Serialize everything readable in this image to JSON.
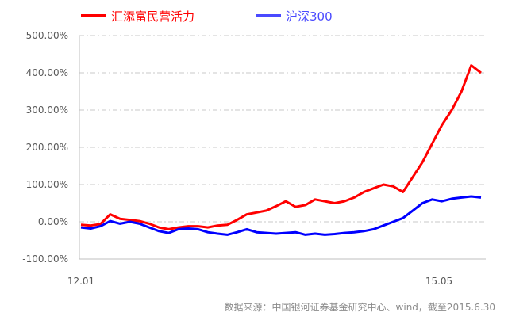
{
  "chart_data": {
    "type": "line",
    "ylim": [
      -100,
      500
    ],
    "y_ticks": [
      "500.00%",
      "400.00%",
      "300.00%",
      "200.00%",
      "100.00%",
      "0.00%",
      "-100.00%"
    ],
    "y_tick_values": [
      500,
      400,
      300,
      200,
      100,
      0,
      -100
    ],
    "x_ticks": [
      "12.01",
      "15.05"
    ],
    "grid": "horizontal dashed",
    "legend": "top-left",
    "series": [
      {
        "name": "汇添富民营活力",
        "color": "#ff0000",
        "x": [
          "2012-01",
          "2012-02",
          "2012-03",
          "2012-04",
          "2012-05",
          "2012-06",
          "2012-07",
          "2012-08",
          "2012-09",
          "2012-10",
          "2012-11",
          "2012-12",
          "2013-01",
          "2013-02",
          "2013-03",
          "2013-04",
          "2013-05",
          "2013-06",
          "2013-07",
          "2013-08",
          "2013-09",
          "2013-10",
          "2013-11",
          "2013-12",
          "2014-01",
          "2014-02",
          "2014-03",
          "2014-04",
          "2014-05",
          "2014-06",
          "2014-07",
          "2014-08",
          "2014-09",
          "2014-10",
          "2014-11",
          "2014-12",
          "2015-01",
          "2015-02",
          "2015-03",
          "2015-04",
          "2015-05",
          "2015-06"
        ],
        "values": [
          -8,
          -10,
          -6,
          20,
          8,
          5,
          2,
          -5,
          -15,
          -20,
          -15,
          -12,
          -12,
          -15,
          -10,
          -8,
          5,
          20,
          25,
          30,
          42,
          55,
          40,
          45,
          60,
          55,
          50,
          55,
          65,
          80,
          90,
          100,
          95,
          80,
          120,
          160,
          210,
          260,
          300,
          350,
          420,
          400
        ]
      },
      {
        "name": "沪深300",
        "color": "#0000ff",
        "x": [
          "2012-01",
          "2012-02",
          "2012-03",
          "2012-04",
          "2012-05",
          "2012-06",
          "2012-07",
          "2012-08",
          "2012-09",
          "2012-10",
          "2012-11",
          "2012-12",
          "2013-01",
          "2013-02",
          "2013-03",
          "2013-04",
          "2013-05",
          "2013-06",
          "2013-07",
          "2013-08",
          "2013-09",
          "2013-10",
          "2013-11",
          "2013-12",
          "2014-01",
          "2014-02",
          "2014-03",
          "2014-04",
          "2014-05",
          "2014-06",
          "2014-07",
          "2014-08",
          "2014-09",
          "2014-10",
          "2014-11",
          "2014-12",
          "2015-01",
          "2015-02",
          "2015-03",
          "2015-04",
          "2015-05",
          "2015-06"
        ],
        "values": [
          -15,
          -18,
          -12,
          2,
          -5,
          0,
          -5,
          -15,
          -25,
          -30,
          -20,
          -18,
          -20,
          -28,
          -32,
          -35,
          -28,
          -20,
          -28,
          -30,
          -32,
          -30,
          -28,
          -35,
          -32,
          -35,
          -33,
          -30,
          -28,
          -25,
          -20,
          -10,
          0,
          10,
          30,
          50,
          60,
          55,
          62,
          65,
          68,
          65
        ]
      }
    ]
  },
  "source": "数据来源：中国银河证券基金研究中心、wind，截至2015.6.30"
}
